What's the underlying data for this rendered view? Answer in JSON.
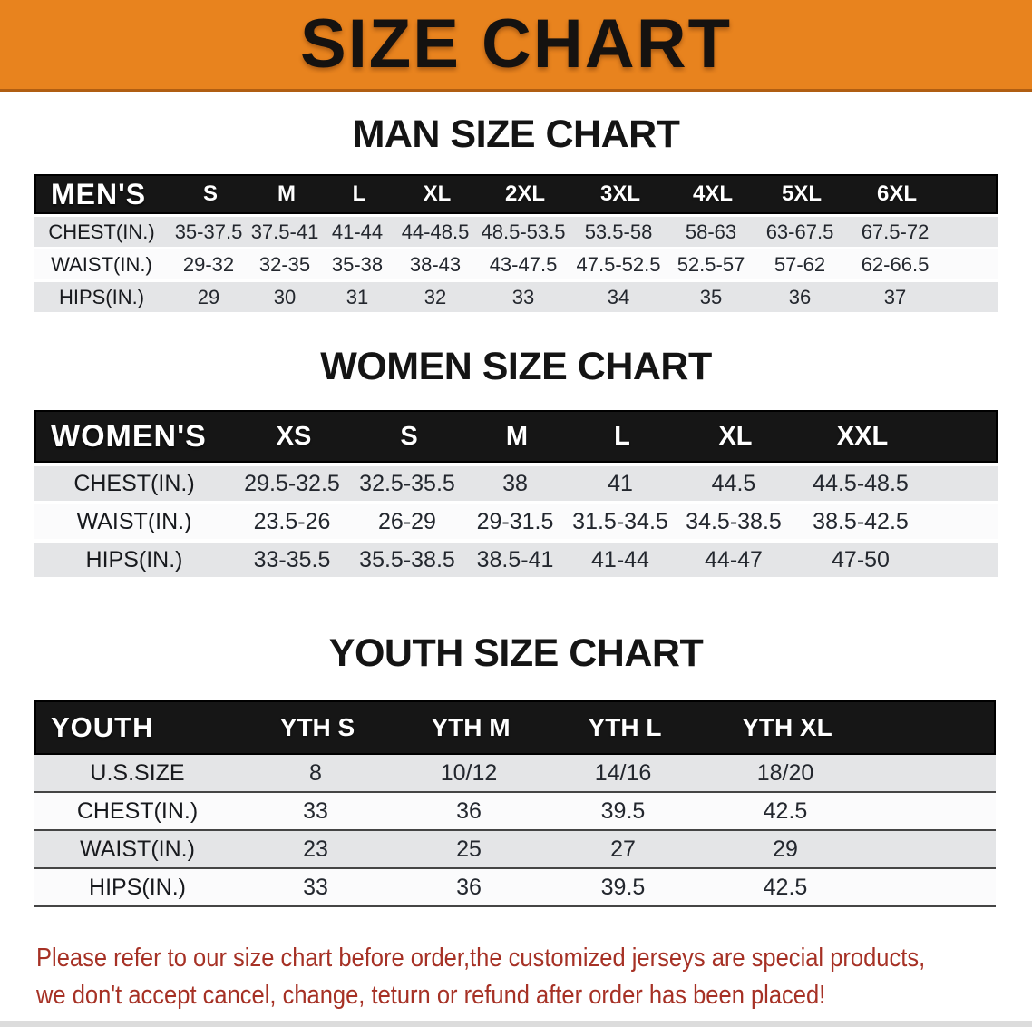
{
  "colors": {
    "banner_bg": "#E8831E",
    "banner_border": "#B05E12",
    "band_bg": "#161616",
    "row_gray": "#E4E5E7",
    "row_white": "#FBFBFC",
    "note_red": "#A63125",
    "text_dark": "#23272E"
  },
  "banner": {
    "title": "SIZE CHART"
  },
  "sections": [
    {
      "heading": "MAN SIZE CHART",
      "table": {
        "label": "MEN'S",
        "columns": [
          "S",
          "M",
          "L",
          "XL",
          "2XL",
          "3XL",
          "4XL",
          "5XL",
          "6XL"
        ],
        "rows": [
          {
            "label": "CHEST(IN.)",
            "values": [
              "35-37.5",
              "37.5-41",
              "41-44",
              "44-48.5",
              "48.5-53.5",
              "53.5-58",
              "58-63",
              "63-67.5",
              "67.5-72"
            ]
          },
          {
            "label": "WAIST(IN.)",
            "values": [
              "29-32",
              "32-35",
              "35-38",
              "38-43",
              "43-47.5",
              "47.5-52.5",
              "52.5-57",
              "57-62",
              "62-66.5"
            ]
          },
          {
            "label": "HIPS(IN.)",
            "values": [
              "29",
              "30",
              "31",
              "32",
              "33",
              "34",
              "35",
              "36",
              "37"
            ]
          }
        ]
      }
    },
    {
      "heading": "WOMEN SIZE CHART",
      "table": {
        "label": "WOMEN'S",
        "columns": [
          "XS",
          "S",
          "M",
          "L",
          "XL",
          "XXL"
        ],
        "rows": [
          {
            "label": "CHEST(IN.)",
            "values": [
              "29.5-32.5",
              "32.5-35.5",
              "38",
              "41",
              "44.5",
              "44.5-48.5"
            ]
          },
          {
            "label": "WAIST(IN.)",
            "values": [
              "23.5-26",
              "26-29",
              "29-31.5",
              "31.5-34.5",
              "34.5-38.5",
              "38.5-42.5"
            ]
          },
          {
            "label": "HIPS(IN.)",
            "values": [
              "33-35.5",
              "35.5-38.5",
              "38.5-41",
              "41-44",
              "44-47",
              "47-50"
            ]
          }
        ]
      }
    },
    {
      "heading": "YOUTH SIZE CHART",
      "table": {
        "label": "YOUTH",
        "columns": [
          "YTH S",
          "YTH M",
          "YTH L",
          "YTH XL"
        ],
        "rows": [
          {
            "label": "U.S.SIZE",
            "values": [
              "8",
              "10/12",
              "14/16",
              "18/20"
            ]
          },
          {
            "label": "CHEST(IN.)",
            "values": [
              "33",
              "36",
              "39.5",
              "42.5"
            ]
          },
          {
            "label": "WAIST(IN.)",
            "values": [
              "23",
              "25",
              "27",
              "29"
            ]
          },
          {
            "label": "HIPS(IN.)",
            "values": [
              "33",
              "36",
              "39.5",
              "42.5"
            ]
          }
        ]
      }
    }
  ],
  "note": {
    "line1": "Please refer to our size chart before order,the customized jerseys are special products,",
    "line2": "we don't accept cancel, change, teturn or refund after order has been placed!"
  }
}
